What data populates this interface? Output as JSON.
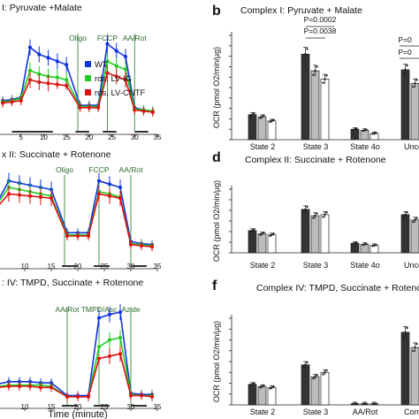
{
  "colors": {
    "wt": "#1133dd",
    "lvig": "#22cc22",
    "lvcntf": "#dd1111",
    "state_line": "#3a8a3a",
    "bar_wt": "#333333",
    "bar_ig": "#bbbbbb",
    "bar_cntf": "#ffffff"
  },
  "legend": [
    "WT",
    "rds, LV-IG",
    "rds, LV-CNTF"
  ],
  "time_label": "Time (minute)",
  "chart_data": [
    {
      "id": "a",
      "type": "line",
      "title": "I: Pyruvate +Malate",
      "xlabel": "",
      "x_ticks": [
        "5",
        "10",
        "15",
        "20",
        "25",
        "30",
        "35"
      ],
      "xlim": [
        0,
        35
      ],
      "markers": [
        {
          "label": "Oligo",
          "x": 17.5
        },
        {
          "label": "FCCP",
          "x": 24
        },
        {
          "label": "AA/Rot",
          "x": 30
        }
      ],
      "x": [
        1,
        3,
        5,
        7,
        9,
        11,
        13,
        15,
        18,
        20,
        22,
        24,
        26,
        28,
        30,
        32,
        34
      ],
      "series": [
        {
          "name": "WT",
          "values": [
            26,
            27,
            29,
            72,
            66,
            63,
            60,
            57,
            22,
            22,
            22,
            75,
            69,
            64,
            20,
            18,
            17
          ]
        },
        {
          "name": "rds, LV-IG",
          "values": [
            25,
            26,
            28,
            52,
            49,
            47,
            46,
            44,
            21,
            21,
            21,
            60,
            56,
            53,
            19,
            18,
            17
          ]
        },
        {
          "name": "rds, LV-CNTF",
          "values": [
            24,
            25,
            26,
            44,
            42,
            41,
            40,
            39,
            20,
            20,
            20,
            50,
            47,
            44,
            18,
            17,
            16
          ]
        }
      ],
      "ylim": [
        0,
        90
      ]
    },
    {
      "id": "b",
      "type": "bar",
      "title": "Complex I: Pyruvate + Malate",
      "ylabel": "OCR (pmol O2/min/µg)",
      "categories": [
        "State 2",
        "State 3",
        "State 4o",
        "Uncou"
      ],
      "series": [
        {
          "name": "WT",
          "values": [
            24,
            82,
            10,
            67
          ]
        },
        {
          "name": "rds, LV-IG",
          "values": [
            22,
            66,
            9,
            54
          ]
        },
        {
          "name": "rds, LV-CNTF",
          "values": [
            18,
            58,
            6,
            52
          ]
        }
      ],
      "y_ticks": [
        "0",
        "10",
        "20",
        "30",
        "40",
        "50",
        "60",
        "70",
        "80",
        "90",
        "100"
      ],
      "ylim": [
        0,
        100
      ],
      "annotations": [
        "P=0.0002",
        "P=0.0038",
        "P=0",
        "P=0"
      ]
    },
    {
      "id": "c",
      "type": "line",
      "title": "x II: Succinate + Rotenone",
      "x_ticks": [
        "10",
        "15",
        "20",
        "25",
        "30",
        "35"
      ],
      "xlim": [
        5,
        35
      ],
      "markers": [
        {
          "label": "Oligo",
          "x": 17.5
        },
        {
          "label": "FCCP",
          "x": 24
        },
        {
          "label": "AA/Rot",
          "x": 30
        }
      ],
      "x": [
        5,
        7,
        9,
        11,
        13,
        15,
        18,
        20,
        22,
        24,
        26,
        28,
        30,
        32,
        34
      ],
      "series": [
        {
          "name": "WT",
          "values": [
            60,
            78,
            76,
            74,
            72,
            70,
            30,
            30,
            30,
            78,
            75,
            72,
            22,
            20,
            19
          ]
        },
        {
          "name": "rds, LV-IG",
          "values": [
            58,
            72,
            70,
            68,
            66,
            64,
            28,
            28,
            28,
            68,
            66,
            63,
            20,
            19,
            18
          ]
        },
        {
          "name": "rds, LV-CNTF",
          "values": [
            55,
            66,
            65,
            64,
            63,
            62,
            27,
            27,
            27,
            66,
            64,
            62,
            19,
            18,
            17
          ]
        }
      ],
      "ylim": [
        0,
        90
      ]
    },
    {
      "id": "d",
      "type": "bar",
      "title": "Complex II: Succinate + Rotenone",
      "ylabel": "OCR (pmol O2/min/µg)",
      "categories": [
        "State 2",
        "State 3",
        "State 4o",
        "Uncou"
      ],
      "series": [
        {
          "name": "WT",
          "values": [
            21,
            41,
            9,
            36
          ]
        },
        {
          "name": "rds, LV-IG",
          "values": [
            18,
            35,
            8,
            31
          ]
        },
        {
          "name": "rds, LV-CNTF",
          "values": [
            17,
            36,
            7,
            30
          ]
        }
      ],
      "y_ticks": [
        "0",
        "10",
        "20",
        "30",
        "40",
        "50",
        "60"
      ],
      "ylim": [
        0,
        60
      ]
    },
    {
      "id": "e",
      "type": "line",
      "title": ": IV: TMPD, Succinate + Rotenone",
      "xlabel": "Time (minute)",
      "x_ticks": [
        "10",
        "15",
        "20",
        "25",
        "30",
        "35"
      ],
      "xlim": [
        5,
        35
      ],
      "markers": [
        {
          "label": "AA/Rot",
          "x": 18
        },
        {
          "label": "TMPD/Asc",
          "x": 24
        },
        {
          "label": "Azide",
          "x": 30
        }
      ],
      "x": [
        5,
        7,
        9,
        11,
        13,
        15,
        18,
        20,
        22,
        24,
        26,
        28,
        30,
        32,
        34
      ],
      "series": [
        {
          "name": "WT",
          "values": [
            18,
            20,
            20,
            20,
            19,
            19,
            8,
            8,
            8,
            75,
            78,
            80,
            10,
            9,
            9
          ]
        },
        {
          "name": "rds, LV-IG",
          "values": [
            16,
            17,
            17,
            17,
            17,
            16,
            7,
            7,
            7,
            50,
            56,
            58,
            9,
            8,
            8
          ]
        },
        {
          "name": "rds, LV-CNTF",
          "values": [
            15,
            16,
            16,
            16,
            15,
            15,
            7,
            7,
            7,
            40,
            42,
            44,
            8,
            8,
            7
          ]
        }
      ],
      "ylim": [
        0,
        90
      ]
    },
    {
      "id": "f",
      "type": "bar",
      "title": "Complex IV: TMPD, Succinate + Rotenone",
      "ylabel": "OCR (pmol O2/min/µg)",
      "categories": [
        "State 2",
        "State 3",
        "AA/Rot",
        "Compl"
      ],
      "series": [
        {
          "name": "WT",
          "values": [
            19,
            37,
            1,
            67
          ]
        },
        {
          "name": "rds, LV-IG",
          "values": [
            17,
            26,
            1,
            53
          ]
        },
        {
          "name": "rds, LV-CNTF",
          "values": [
            16,
            30,
            1,
            50
          ]
        }
      ],
      "y_ticks": [
        "0",
        "10",
        "20",
        "30",
        "40",
        "50",
        "60",
        "70",
        "80"
      ],
      "ylim": [
        0,
        80
      ]
    }
  ],
  "panel_letters": [
    "b",
    "d",
    "f"
  ]
}
